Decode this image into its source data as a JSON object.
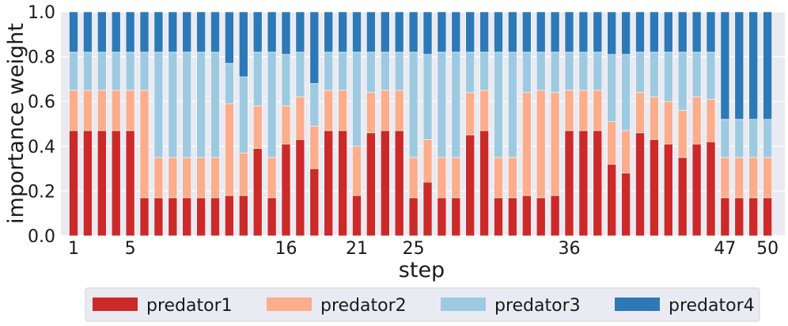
{
  "chart_data": {
    "type": "bar",
    "stacked": true,
    "xlabel": "step",
    "ylabel": "importance weight",
    "ylim": [
      0,
      1
    ],
    "yticks": [
      "0.0",
      "0.2",
      "0.4",
      "0.6",
      "0.8",
      "1.0"
    ],
    "xtick_labels": [
      {
        "step": 1,
        "label": "1"
      },
      {
        "step": 5,
        "label": "5"
      },
      {
        "step": 16,
        "label": "16"
      },
      {
        "step": 21,
        "label": "21"
      },
      {
        "step": 25,
        "label": "25"
      },
      {
        "step": 36,
        "label": "36"
      },
      {
        "step": 47,
        "label": "47"
      },
      {
        "step": 50,
        "label": "50"
      }
    ],
    "categories": [
      1,
      2,
      3,
      4,
      5,
      6,
      7,
      8,
      9,
      10,
      11,
      12,
      13,
      14,
      15,
      16,
      17,
      18,
      19,
      20,
      21,
      22,
      23,
      24,
      25,
      26,
      27,
      28,
      29,
      30,
      31,
      32,
      33,
      34,
      35,
      36,
      37,
      38,
      39,
      40,
      41,
      42,
      43,
      44,
      45,
      46,
      47,
      48,
      49,
      50
    ],
    "series": [
      {
        "name": "predator1",
        "color": "#cb2a29",
        "values": [
          0.47,
          0.47,
          0.47,
          0.47,
          0.47,
          0.17,
          0.17,
          0.17,
          0.17,
          0.17,
          0.17,
          0.18,
          0.18,
          0.39,
          0.17,
          0.41,
          0.43,
          0.3,
          0.47,
          0.47,
          0.18,
          0.46,
          0.47,
          0.47,
          0.17,
          0.24,
          0.17,
          0.17,
          0.45,
          0.47,
          0.17,
          0.17,
          0.18,
          0.17,
          0.18,
          0.47,
          0.47,
          0.47,
          0.32,
          0.28,
          0.46,
          0.43,
          0.41,
          0.35,
          0.41,
          0.42,
          0.17,
          0.17,
          0.17,
          0.17
        ]
      },
      {
        "name": "predator2",
        "color": "#fbad8c",
        "values": [
          0.18,
          0.18,
          0.18,
          0.18,
          0.18,
          0.48,
          0.18,
          0.18,
          0.18,
          0.18,
          0.18,
          0.41,
          0.19,
          0.19,
          0.18,
          0.17,
          0.19,
          0.19,
          0.18,
          0.18,
          0.22,
          0.18,
          0.18,
          0.18,
          0.18,
          0.19,
          0.18,
          0.18,
          0.19,
          0.18,
          0.18,
          0.18,
          0.46,
          0.48,
          0.46,
          0.18,
          0.18,
          0.18,
          0.19,
          0.19,
          0.18,
          0.19,
          0.19,
          0.21,
          0.21,
          0.19,
          0.18,
          0.18,
          0.18,
          0.18
        ]
      },
      {
        "name": "predator3",
        "color": "#9dcae1",
        "values": [
          0.17,
          0.17,
          0.17,
          0.17,
          0.17,
          0.17,
          0.47,
          0.47,
          0.47,
          0.47,
          0.47,
          0.18,
          0.34,
          0.24,
          0.47,
          0.23,
          0.2,
          0.19,
          0.17,
          0.17,
          0.42,
          0.18,
          0.17,
          0.17,
          0.47,
          0.38,
          0.47,
          0.47,
          0.18,
          0.17,
          0.47,
          0.47,
          0.18,
          0.17,
          0.18,
          0.17,
          0.17,
          0.17,
          0.3,
          0.34,
          0.18,
          0.2,
          0.22,
          0.26,
          0.2,
          0.21,
          0.17,
          0.17,
          0.17,
          0.17
        ]
      },
      {
        "name": "predator4",
        "color": "#2d79b8",
        "values": [
          0.18,
          0.18,
          0.18,
          0.18,
          0.18,
          0.18,
          0.18,
          0.18,
          0.18,
          0.18,
          0.18,
          0.23,
          0.29,
          0.18,
          0.18,
          0.19,
          0.18,
          0.32,
          0.18,
          0.18,
          0.18,
          0.18,
          0.18,
          0.18,
          0.18,
          0.19,
          0.18,
          0.18,
          0.18,
          0.18,
          0.18,
          0.18,
          0.18,
          0.18,
          0.18,
          0.18,
          0.18,
          0.18,
          0.19,
          0.19,
          0.18,
          0.18,
          0.18,
          0.18,
          0.18,
          0.18,
          0.48,
          0.48,
          0.48,
          0.48
        ]
      }
    ],
    "legend_position": "bottom",
    "grid": true
  }
}
